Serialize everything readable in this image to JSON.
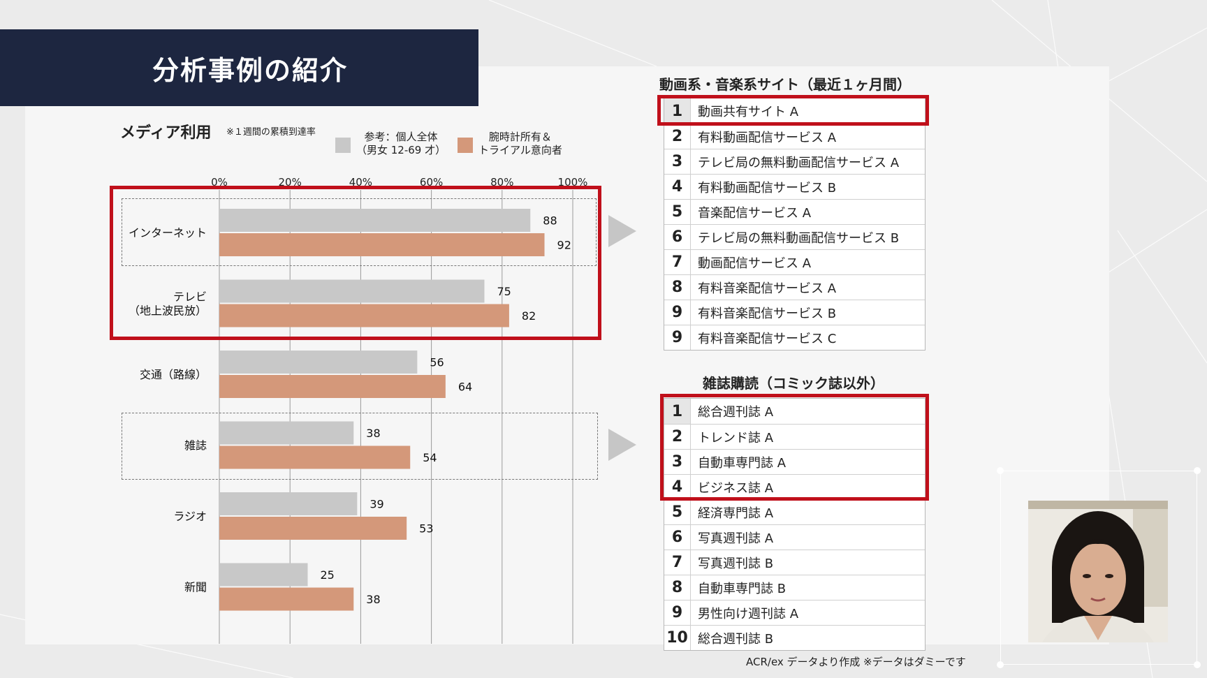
{
  "slide": {
    "title": "分析事例の紹介",
    "source_note": "ACR/ex データより作成 ※データはダミーです"
  },
  "chart": {
    "section_title": "メディア利用",
    "note": "※１週間の累積到達率",
    "legend": [
      {
        "label_line1": "参考：個人全体",
        "label_line2": "（男女 12-69 才）",
        "color": "#c8c8c8"
      },
      {
        "label_line1": "腕時計所有＆",
        "label_line2": "トライアル意向者",
        "color": "#d4987a"
      }
    ]
  },
  "chart_data": {
    "type": "bar",
    "orientation": "horizontal",
    "categories": [
      "インターネット",
      "テレビ（地上波民放）",
      "交通（路線）",
      "雑誌",
      "ラジオ",
      "新聞"
    ],
    "category_lines": [
      [
        "インターネット"
      ],
      [
        "テレビ",
        "（地上波民放）"
      ],
      [
        "交通（路線）"
      ],
      [
        "雑誌"
      ],
      [
        "ラジオ"
      ],
      [
        "新聞"
      ]
    ],
    "x_ticks": [
      "0%",
      "20%",
      "40%",
      "60%",
      "80%",
      "100%"
    ],
    "xlim": [
      0,
      100
    ],
    "grid": true,
    "series": [
      {
        "name": "参考：個人全体（男女 12-69 才）",
        "color": "#c8c8c8",
        "values": [
          88,
          75,
          56,
          38,
          39,
          25
        ]
      },
      {
        "name": "腕時計所有＆トライアル意向者",
        "color": "#d4987a",
        "values": [
          92,
          82,
          64,
          54,
          53,
          38
        ]
      }
    ]
  },
  "ranking_video_music": {
    "title": "動画系・音楽系サイト（最近１ヶ月間）",
    "items": [
      {
        "rank": "1",
        "name": "動画共有サイト A"
      },
      {
        "rank": "2",
        "name": "有料動画配信サービス A"
      },
      {
        "rank": "3",
        "name": "テレビ局の無料動画配信サービス A"
      },
      {
        "rank": "4",
        "name": "有料動画配信サービス B"
      },
      {
        "rank": "5",
        "name": "音楽配信サービス A"
      },
      {
        "rank": "6",
        "name": "テレビ局の無料動画配信サービス B"
      },
      {
        "rank": "7",
        "name": "動画配信サービス A"
      },
      {
        "rank": "8",
        "name": "有料音楽配信サービス A"
      },
      {
        "rank": "9",
        "name": "有料音楽配信サービス B"
      },
      {
        "rank": "9",
        "name": "有料音楽配信サービス C"
      }
    ]
  },
  "ranking_magazine": {
    "title": "雑誌購読（コミック誌以外）",
    "items": [
      {
        "rank": "1",
        "name": "総合週刊誌 A"
      },
      {
        "rank": "2",
        "name": "トレンド誌 A"
      },
      {
        "rank": "3",
        "name": "自動車専門誌 A"
      },
      {
        "rank": "4",
        "name": "ビジネス誌 A"
      },
      {
        "rank": "5",
        "name": "経済専門誌 A"
      },
      {
        "rank": "6",
        "name": "写真週刊誌 A"
      },
      {
        "rank": "7",
        "name": "写真週刊誌 B"
      },
      {
        "rank": "8",
        "name": "自動車専門誌 B"
      },
      {
        "rank": "9",
        "name": "男性向け週刊誌 A"
      },
      {
        "rank": "10",
        "name": "総合週刊誌 B"
      }
    ]
  },
  "colors": {
    "title_bar": "#1d2640",
    "highlight": "#c0101b",
    "series_gray": "#c8c8c8",
    "series_orange": "#d4987a"
  }
}
